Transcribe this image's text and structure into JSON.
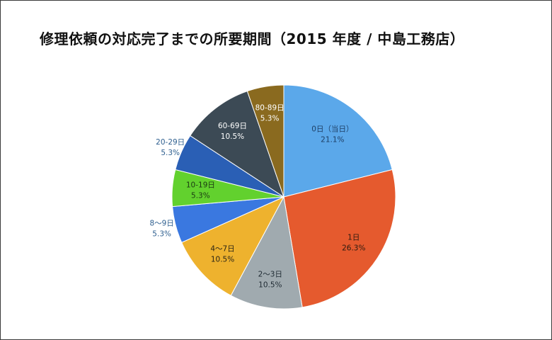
{
  "chart_data": {
    "type": "pie",
    "title": "修理依頼の対応完了までの所要期間（2015 年度 / 中島工務店）",
    "categories": [
      "0日（当日）",
      "1日",
      "2〜3日",
      "4〜7日",
      "8〜9日",
      "10-19日",
      "20-29日",
      "60-69日",
      "80-89日"
    ],
    "values": [
      21.1,
      26.3,
      10.5,
      10.5,
      5.3,
      5.3,
      5.3,
      10.5,
      5.3
    ],
    "value_labels": [
      "21.1%",
      "26.3%",
      "10.5%",
      "10.5%",
      "5.3%",
      "5.3%",
      "5.3%",
      "10.5%",
      "5.3%"
    ],
    "colors": [
      "#5ba8ea",
      "#e55a2e",
      "#a0aaaf",
      "#eeb22e",
      "#3a78e0",
      "#62d12e",
      "#2a5fb5",
      "#3c4a55",
      "#8a6a1f"
    ],
    "start_angle_deg": 0,
    "direction": "clockwise",
    "legend": "none"
  }
}
